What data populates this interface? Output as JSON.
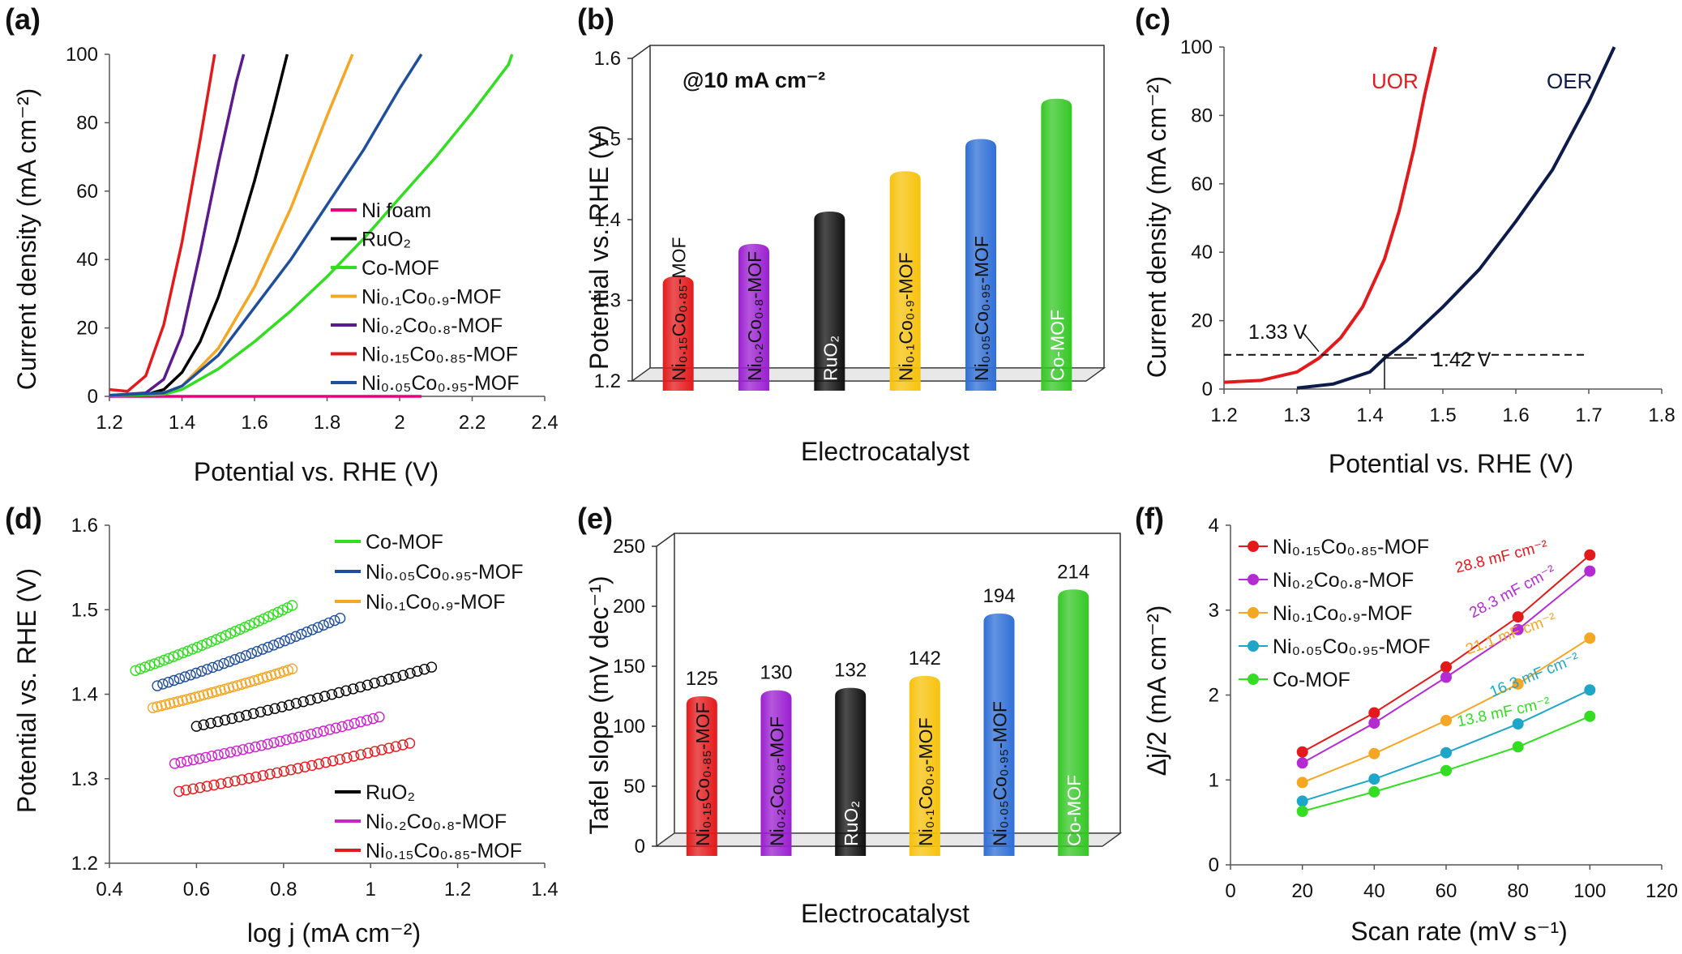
{
  "panels": [
    {
      "label": "(a)",
      "xlabel": "Potential vs. RHE (V)",
      "ylabel": "Current density (mA cm⁻²)"
    },
    {
      "label": "(b)",
      "xlabel": "Electrocatalyst",
      "ylabel": "Potential vs. RHE (V)",
      "annotation": "@10 mA cm⁻²"
    },
    {
      "label": "(c)",
      "xlabel": "Potential vs. RHE (V)",
      "ylabel": "Current density (mA cm⁻²)",
      "annotations": [
        "UOR",
        "OER",
        "1.33 V",
        "1.42 V"
      ]
    },
    {
      "label": "(d)",
      "xlabel": "log j (mA cm⁻²)",
      "ylabel": "Potential vs. RHE (V)"
    },
    {
      "label": "(e)",
      "xlabel": "Electrocatalyst",
      "ylabel": "Tafel slope (mV dec⁻¹)"
    },
    {
      "label": "(f)",
      "xlabel": "Scan rate (mV s⁻¹)",
      "ylabel": "Δj/2 (mA cm⁻²)"
    }
  ],
  "chart_data": [
    {
      "type": "line",
      "panel": "a",
      "xlabel": "Potential vs. RHE (V)",
      "ylabel": "Current density (mA cm⁻²)",
      "xlim": [
        1.2,
        2.4
      ],
      "ylim": [
        0,
        100
      ],
      "xticks": [
        "1.2",
        "1.4",
        "1.6",
        "1.8",
        "2",
        "2.2",
        "2.4"
      ],
      "yticks": [
        "0",
        "20",
        "40",
        "60",
        "80",
        "100"
      ],
      "legend_position": "center-right",
      "series": [
        {
          "name": "Ni foam",
          "color": "#e6007e",
          "points": [
            [
              1.2,
              0
            ],
            [
              2.06,
              0
            ]
          ]
        },
        {
          "name": "RuO₂",
          "color": "#000000",
          "points": [
            [
              1.2,
              0.3
            ],
            [
              1.3,
              0.5
            ],
            [
              1.35,
              2
            ],
            [
              1.4,
              7
            ],
            [
              1.45,
              16
            ],
            [
              1.5,
              29
            ],
            [
              1.55,
              45
            ],
            [
              1.6,
              63
            ],
            [
              1.65,
              83
            ],
            [
              1.69,
              100
            ]
          ]
        },
        {
          "name": "Co-MOF",
          "color": "#33dd22",
          "points": [
            [
              1.2,
              0.2
            ],
            [
              1.35,
              0.6
            ],
            [
              1.4,
              2
            ],
            [
              1.5,
              8
            ],
            [
              1.6,
              16
            ],
            [
              1.7,
              25
            ],
            [
              1.8,
              35
            ],
            [
              1.9,
              46
            ],
            [
              2.0,
              58
            ],
            [
              2.1,
              70
            ],
            [
              2.2,
              83
            ],
            [
              2.3,
              97
            ],
            [
              2.31,
              100
            ]
          ]
        },
        {
          "name": "Ni₀.₁Co₀.₉-MOF",
          "color": "#f5a623",
          "points": [
            [
              1.2,
              0.3
            ],
            [
              1.35,
              1
            ],
            [
              1.4,
              3
            ],
            [
              1.5,
              14
            ],
            [
              1.6,
              32
            ],
            [
              1.7,
              55
            ],
            [
              1.8,
              82
            ],
            [
              1.87,
              100
            ]
          ]
        },
        {
          "name": "Ni₀.₂Co₀.₈-MOF",
          "color": "#5b1a8e",
          "points": [
            [
              1.2,
              0.3
            ],
            [
              1.3,
              1
            ],
            [
              1.35,
              5
            ],
            [
              1.4,
              18
            ],
            [
              1.45,
              42
            ],
            [
              1.5,
              68
            ],
            [
              1.55,
              92
            ],
            [
              1.57,
              100
            ]
          ]
        },
        {
          "name": "Ni₀.₁₅Co₀.₈₅-MOF",
          "color": "#e31a1c",
          "points": [
            [
              1.2,
              2
            ],
            [
              1.25,
              1.5
            ],
            [
              1.3,
              6
            ],
            [
              1.35,
              21
            ],
            [
              1.4,
              45
            ],
            [
              1.45,
              75
            ],
            [
              1.49,
              100
            ]
          ]
        },
        {
          "name": "Ni₀.₀₅Co₀.₉₅-MOF",
          "color": "#1f4e9c",
          "points": [
            [
              1.2,
              0.3
            ],
            [
              1.35,
              1
            ],
            [
              1.4,
              3
            ],
            [
              1.5,
              12
            ],
            [
              1.6,
              26
            ],
            [
              1.7,
              40
            ],
            [
              1.8,
              56
            ],
            [
              1.9,
              72
            ],
            [
              2.0,
              90
            ],
            [
              2.06,
              100
            ]
          ]
        }
      ]
    },
    {
      "type": "bar",
      "panel": "b",
      "xlabel": "Electrocatalyst",
      "ylabel": "Potential vs. RHE (V)",
      "ylim": [
        1.2,
        1.6
      ],
      "yticks": [
        "1.2",
        "1.3",
        "1.4",
        "1.5",
        "1.6"
      ],
      "categories": [
        "Ni₀.₁₅Co₀.₈₅-MOF",
        "Ni₀.₂Co₀.₈-MOF",
        "RuO₂",
        "Ni₀.₁Co₀.₉-MOF",
        "Ni₀.₀₅Co₀.₉₅-MOF",
        "Co-MOF"
      ],
      "values": [
        1.33,
        1.37,
        1.41,
        1.46,
        1.5,
        1.55
      ],
      "colors": [
        "#e31a1c",
        "#9b1fd1",
        "#111111",
        "#f7c20b",
        "#2f6fd6",
        "#35c725"
      ]
    },
    {
      "type": "line",
      "panel": "c",
      "xlabel": "Potential vs. RHE (V)",
      "ylabel": "Current density (mA cm⁻²)",
      "xlim": [
        1.2,
        1.8
      ],
      "ylim": [
        0,
        100
      ],
      "xticks": [
        "1.2",
        "1.3",
        "1.4",
        "1.5",
        "1.6",
        "1.7",
        "1.8"
      ],
      "yticks": [
        "0",
        "20",
        "40",
        "60",
        "80",
        "100"
      ],
      "series": [
        {
          "name": "UOR",
          "color": "#e31a1c",
          "points": [
            [
              1.2,
              2
            ],
            [
              1.25,
              2.5
            ],
            [
              1.3,
              5
            ],
            [
              1.33,
              9
            ],
            [
              1.36,
              15
            ],
            [
              1.39,
              24
            ],
            [
              1.42,
              38
            ],
            [
              1.44,
              52
            ],
            [
              1.46,
              70
            ],
            [
              1.475,
              86
            ],
            [
              1.49,
              100
            ]
          ]
        },
        {
          "name": "OER",
          "color": "#0d1b4a",
          "points": [
            [
              1.3,
              0.3
            ],
            [
              1.35,
              1.5
            ],
            [
              1.4,
              5
            ],
            [
              1.42,
              9
            ],
            [
              1.45,
              14
            ],
            [
              1.5,
              24
            ],
            [
              1.55,
              35
            ],
            [
              1.6,
              49
            ],
            [
              1.65,
              64
            ],
            [
              1.7,
              84
            ],
            [
              1.735,
              100
            ]
          ]
        }
      ],
      "reference": {
        "current": 10,
        "uor_potential": 1.33,
        "oer_potential": 1.42
      }
    },
    {
      "type": "scatter",
      "panel": "d",
      "xlabel": "log j (mA cm⁻²)",
      "ylabel": "Potential vs. RHE (V)",
      "xlim": [
        0.4,
        1.4
      ],
      "ylim": [
        1.2,
        1.6
      ],
      "xticks": [
        "0.4",
        "0.6",
        "0.8",
        "1",
        "1.2",
        "1.4"
      ],
      "yticks": [
        "1.2",
        "1.3",
        "1.4",
        "1.5",
        "1.6"
      ],
      "series": [
        {
          "name": "Co-MOF",
          "color": "#33dd22",
          "x_range": [
            0.46,
            0.82
          ],
          "y_range": [
            1.428,
            1.505
          ]
        },
        {
          "name": "Ni₀.₀₅Co₀.₉₅-MOF",
          "color": "#1f4e9c",
          "x_range": [
            0.51,
            0.93
          ],
          "y_range": [
            1.41,
            1.49
          ]
        },
        {
          "name": "Ni₀.₁Co₀.₉-MOF",
          "color": "#f5a623",
          "x_range": [
            0.5,
            0.82
          ],
          "y_range": [
            1.384,
            1.43
          ]
        },
        {
          "name": "RuO₂",
          "color": "#000000",
          "x_range": [
            0.6,
            1.14
          ],
          "y_range": [
            1.362,
            1.432
          ]
        },
        {
          "name": "Ni₀.₂Co₀.₈-MOF",
          "color": "#cc22cc",
          "x_range": [
            0.55,
            1.02
          ],
          "y_range": [
            1.318,
            1.373
          ]
        },
        {
          "name": "Ni₀.₁₅Co₀.₈₅-MOF",
          "color": "#e31a1c",
          "x_range": [
            0.56,
            1.09
          ],
          "y_range": [
            1.285,
            1.342
          ]
        }
      ]
    },
    {
      "type": "bar",
      "panel": "e",
      "xlabel": "Electrocatalyst",
      "ylabel": "Tafel slope (mV dec⁻¹)",
      "ylim": [
        0,
        250
      ],
      "yticks": [
        "0",
        "50",
        "100",
        "150",
        "200",
        "250"
      ],
      "categories": [
        "Ni₀.₁₅Co₀.₈₅-MOF",
        "Ni₀.₂Co₀.₈-MOF",
        "RuO₂",
        "Ni₀.₁Co₀.₉-MOF",
        "Ni₀.₀₅Co₀.₉₅-MOF",
        "Co-MOF"
      ],
      "values": [
        125,
        130,
        132,
        142,
        194,
        214
      ],
      "colors": [
        "#e31a1c",
        "#9b1fd1",
        "#111111",
        "#f7c20b",
        "#2f6fd6",
        "#35c725"
      ]
    },
    {
      "type": "line",
      "panel": "f",
      "xlabel": "Scan rate (mV s⁻¹)",
      "ylabel": "Δj/2 (mA cm⁻²)",
      "xlim": [
        0,
        120
      ],
      "ylim": [
        0,
        4
      ],
      "xticks": [
        "0",
        "20",
        "40",
        "60",
        "80",
        "100",
        "120"
      ],
      "yticks": [
        "0",
        "1",
        "2",
        "3",
        "4"
      ],
      "x": [
        20,
        40,
        60,
        80,
        100
      ],
      "series": [
        {
          "name": "Ni₀.₁₅Co₀.₈₅-MOF",
          "color": "#e31a1c",
          "values": [
            1.33,
            1.79,
            2.33,
            2.92,
            3.65
          ],
          "label": "28.8 mF cm⁻²"
        },
        {
          "name": "Ni₀.₂Co₀.₈-MOF",
          "color": "#b42bd3",
          "values": [
            1.2,
            1.67,
            2.21,
            2.77,
            3.46
          ],
          "label": "28.3 mF cm⁻²"
        },
        {
          "name": "Ni₀.₁Co₀.₉-MOF",
          "color": "#f5a623",
          "values": [
            0.97,
            1.31,
            1.7,
            2.13,
            2.67
          ],
          "label": "21.1 mF cm⁻²"
        },
        {
          "name": "Ni₀.₀₅Co₀.₉₅-MOF",
          "color": "#1ea6c9",
          "values": [
            0.75,
            1.01,
            1.32,
            1.66,
            2.06
          ],
          "label": "16.3 mF cm⁻²"
        },
        {
          "name": "Co-MOF",
          "color": "#33dd22",
          "values": [
            0.63,
            0.86,
            1.11,
            1.39,
            1.75
          ],
          "label": "13.8 mF cm⁻²"
        }
      ]
    }
  ]
}
